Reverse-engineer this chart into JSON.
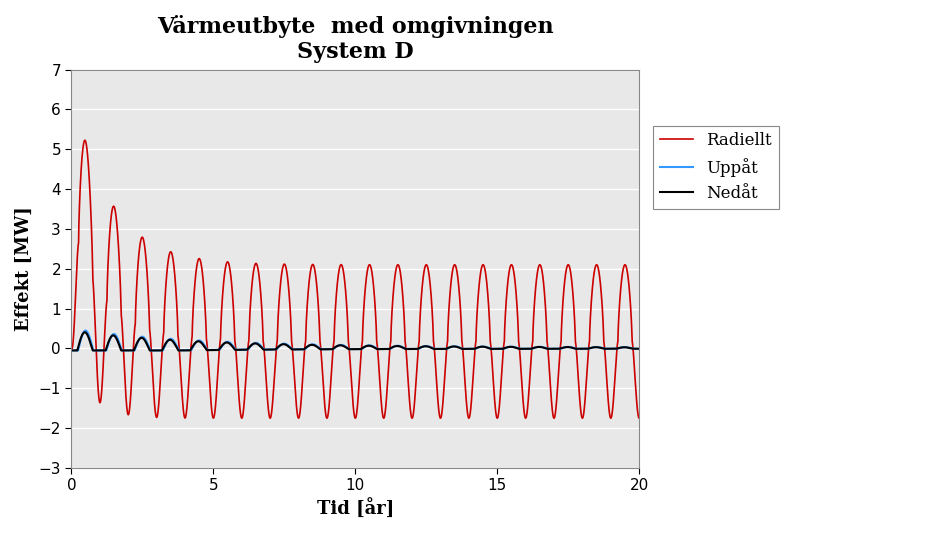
{
  "title_line1": "Värmeutbyte  med omgivningen",
  "title_line2": "System D",
  "xlabel": "Tid [år]",
  "ylabel": "Effekt [MW]",
  "xlim": [
    0,
    20
  ],
  "ylim": [
    -3,
    7
  ],
  "yticks": [
    -3,
    -2,
    -1,
    0,
    1,
    2,
    3,
    4,
    5,
    6,
    7
  ],
  "xticks": [
    0,
    5,
    10,
    15,
    20
  ],
  "legend_labels": [
    "Radiellt",
    "Uppåt",
    "Nedåt"
  ],
  "legend_colors": [
    "#cc0000",
    "#3399ff",
    "#000000"
  ],
  "bg_color": "#e8e8e8",
  "title_fontsize": 16,
  "axis_label_fontsize": 13,
  "tick_fontsize": 11,
  "legend_fontsize": 12
}
